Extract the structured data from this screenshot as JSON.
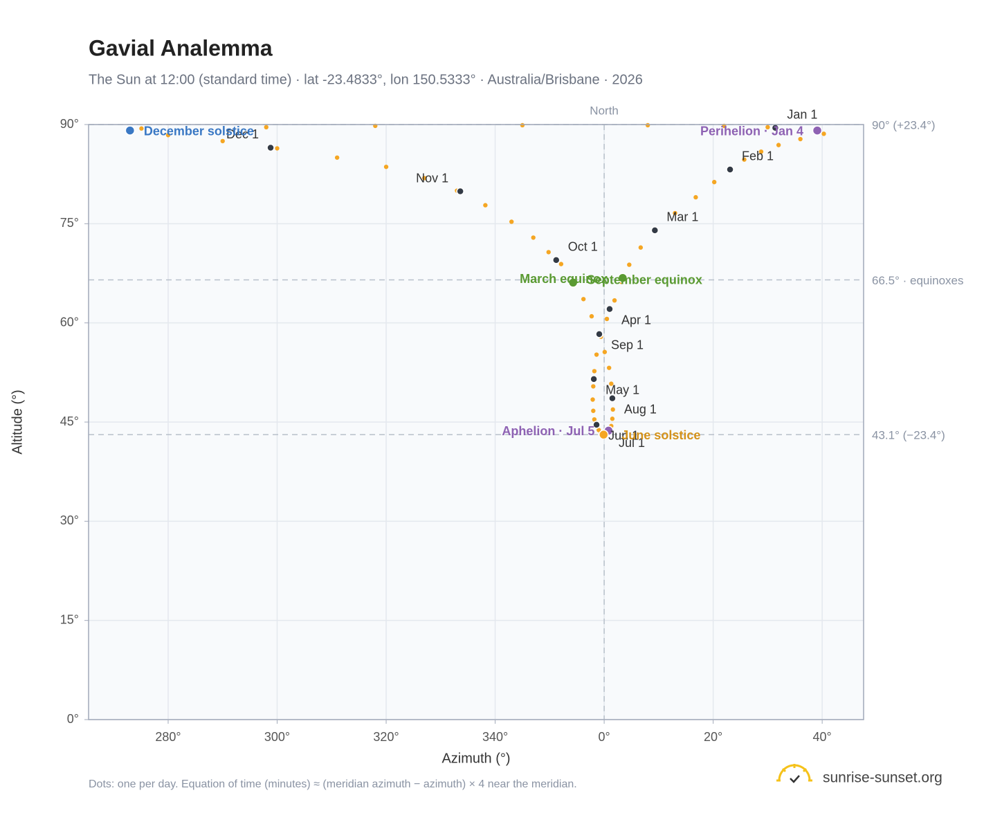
{
  "chart_data": {
    "type": "scatter",
    "title": "Gavial Analemma",
    "subtitle": "The Sun at 12:00 (standard time) · lat -23.4833°, lon 150.5333° · Australia/Brisbane · 2026",
    "x_label": "Azimuth (°)",
    "y_label": "Altitude (°)",
    "xlim": [
      -94.6,
      47.6
    ],
    "ylim": [
      0,
      90
    ],
    "xticks": [
      {
        "value": -80,
        "label": "280°"
      },
      {
        "value": -60,
        "label": "300°"
      },
      {
        "value": -40,
        "label": "320°"
      },
      {
        "value": -20,
        "label": "340°"
      },
      {
        "value": 0,
        "label": "0°"
      },
      {
        "value": 20,
        "label": "20°"
      },
      {
        "value": 40,
        "label": "40°"
      }
    ],
    "yticks": [
      {
        "value": 0,
        "label": "0°"
      },
      {
        "value": 15,
        "label": "15°"
      },
      {
        "value": 30,
        "label": "30°"
      },
      {
        "value": 45,
        "label": "45°"
      },
      {
        "value": 60,
        "label": "60°"
      },
      {
        "value": 75,
        "label": "75°"
      },
      {
        "value": 90,
        "label": "90°"
      }
    ],
    "grid": true,
    "meridian": {
      "value": 0,
      "label": "North"
    },
    "reference_lines": [
      {
        "value": 90,
        "label": "90° (+23.4°)"
      },
      {
        "value": 66.5,
        "label": "66.5° · equinoxes"
      },
      {
        "value": 43.1,
        "label": "43.1° (−23.4°)"
      }
    ],
    "points": {
      "color": "#f5a623",
      "x": [
        31.4,
        39.1,
        40.3,
        36.0,
        32.0,
        28.8,
        25.7,
        23.2,
        20.2,
        16.8,
        13.0,
        9.3,
        6.7,
        4.6,
        3.2,
        1.9,
        0.5,
        -0.6,
        -1.4,
        -1.8,
        -2.0,
        -2.1,
        -2.0,
        -1.8,
        -1.4,
        -1.0,
        -0.6,
        -0.1,
        0.4,
        0.9,
        1.3,
        1.5,
        1.6,
        1.5,
        1.3,
        0.9,
        0.1,
        -0.9,
        -2.3,
        -3.8,
        -5.6,
        -7.9,
        -10.2,
        -13.0,
        -17.0,
        -21.8,
        -27.0,
        -33.0,
        -40.0,
        -49.0,
        -60.0,
        -70.0,
        -80.0,
        -87.0,
        -84.9,
        -62.0,
        -42.0,
        -15.0,
        8.0,
        22.0,
        30.0
      ],
      "y": [
        89.5,
        89.1,
        88.6,
        87.8,
        86.9,
        85.9,
        84.7,
        83.2,
        81.3,
        79.0,
        76.6,
        74.0,
        71.4,
        68.8,
        66.2,
        63.4,
        60.6,
        57.9,
        55.2,
        52.7,
        50.4,
        48.4,
        46.7,
        45.4,
        44.6,
        43.8,
        43.3,
        43.1,
        43.3,
        43.7,
        44.4,
        45.5,
        46.9,
        48.7,
        50.8,
        53.2,
        55.6,
        58.3,
        61.0,
        63.6,
        66.3,
        68.9,
        70.7,
        72.9,
        75.3,
        77.8,
        80.0,
        81.9,
        83.6,
        85.0,
        86.4,
        87.5,
        88.4,
        89.1,
        89.4,
        89.6,
        89.8,
        89.9,
        89.9,
        89.8,
        89.6
      ]
    },
    "months": {
      "color": "#333a45",
      "labels": [
        "Jan 1",
        "Feb 1",
        "Mar 1",
        "Apr 1",
        "May 1",
        "Jun 1",
        "Jul 1",
        "Aug 1",
        "Sep 1",
        "Oct 1",
        "Nov 1",
        "Dec 1"
      ],
      "x": [
        31.4,
        23.1,
        9.3,
        1.0,
        -1.9,
        -1.4,
        0.5,
        1.5,
        -0.9,
        -8.8,
        -26.4,
        -61.2
      ],
      "y": [
        89.5,
        83.2,
        74.0,
        62.1,
        51.5,
        44.6,
        43.5,
        48.6,
        58.3,
        69.5,
        79.9,
        86.5
      ]
    },
    "events": [
      {
        "name": "December solstice",
        "x": -87.0,
        "y": 89.1,
        "color": "#3a78c4"
      },
      {
        "name": "Perihelion · Jan 4",
        "x": 39.1,
        "y": 89.1,
        "color": "#8e62b3"
      },
      {
        "name": "March equinox",
        "x": -5.7,
        "y": 66.1,
        "color": "#5a9a32"
      },
      {
        "name": "September equinox",
        "x": 3.4,
        "y": 66.8,
        "color": "#5a9a32"
      },
      {
        "name": "Aphelion · Jul 5",
        "x": 0.8,
        "y": 43.7,
        "color": "#8e62b3"
      },
      {
        "name": "June solstice",
        "x": -0.1,
        "y": 43.1,
        "color": "#f5a623",
        "label_color": "#d4921a"
      }
    ],
    "note": "Dots: one per day. Equation of time (minutes) ≈ (meridian azimuth − azimuth) × 4 near the meridian.",
    "brand": "sunrise-sunset.org"
  }
}
